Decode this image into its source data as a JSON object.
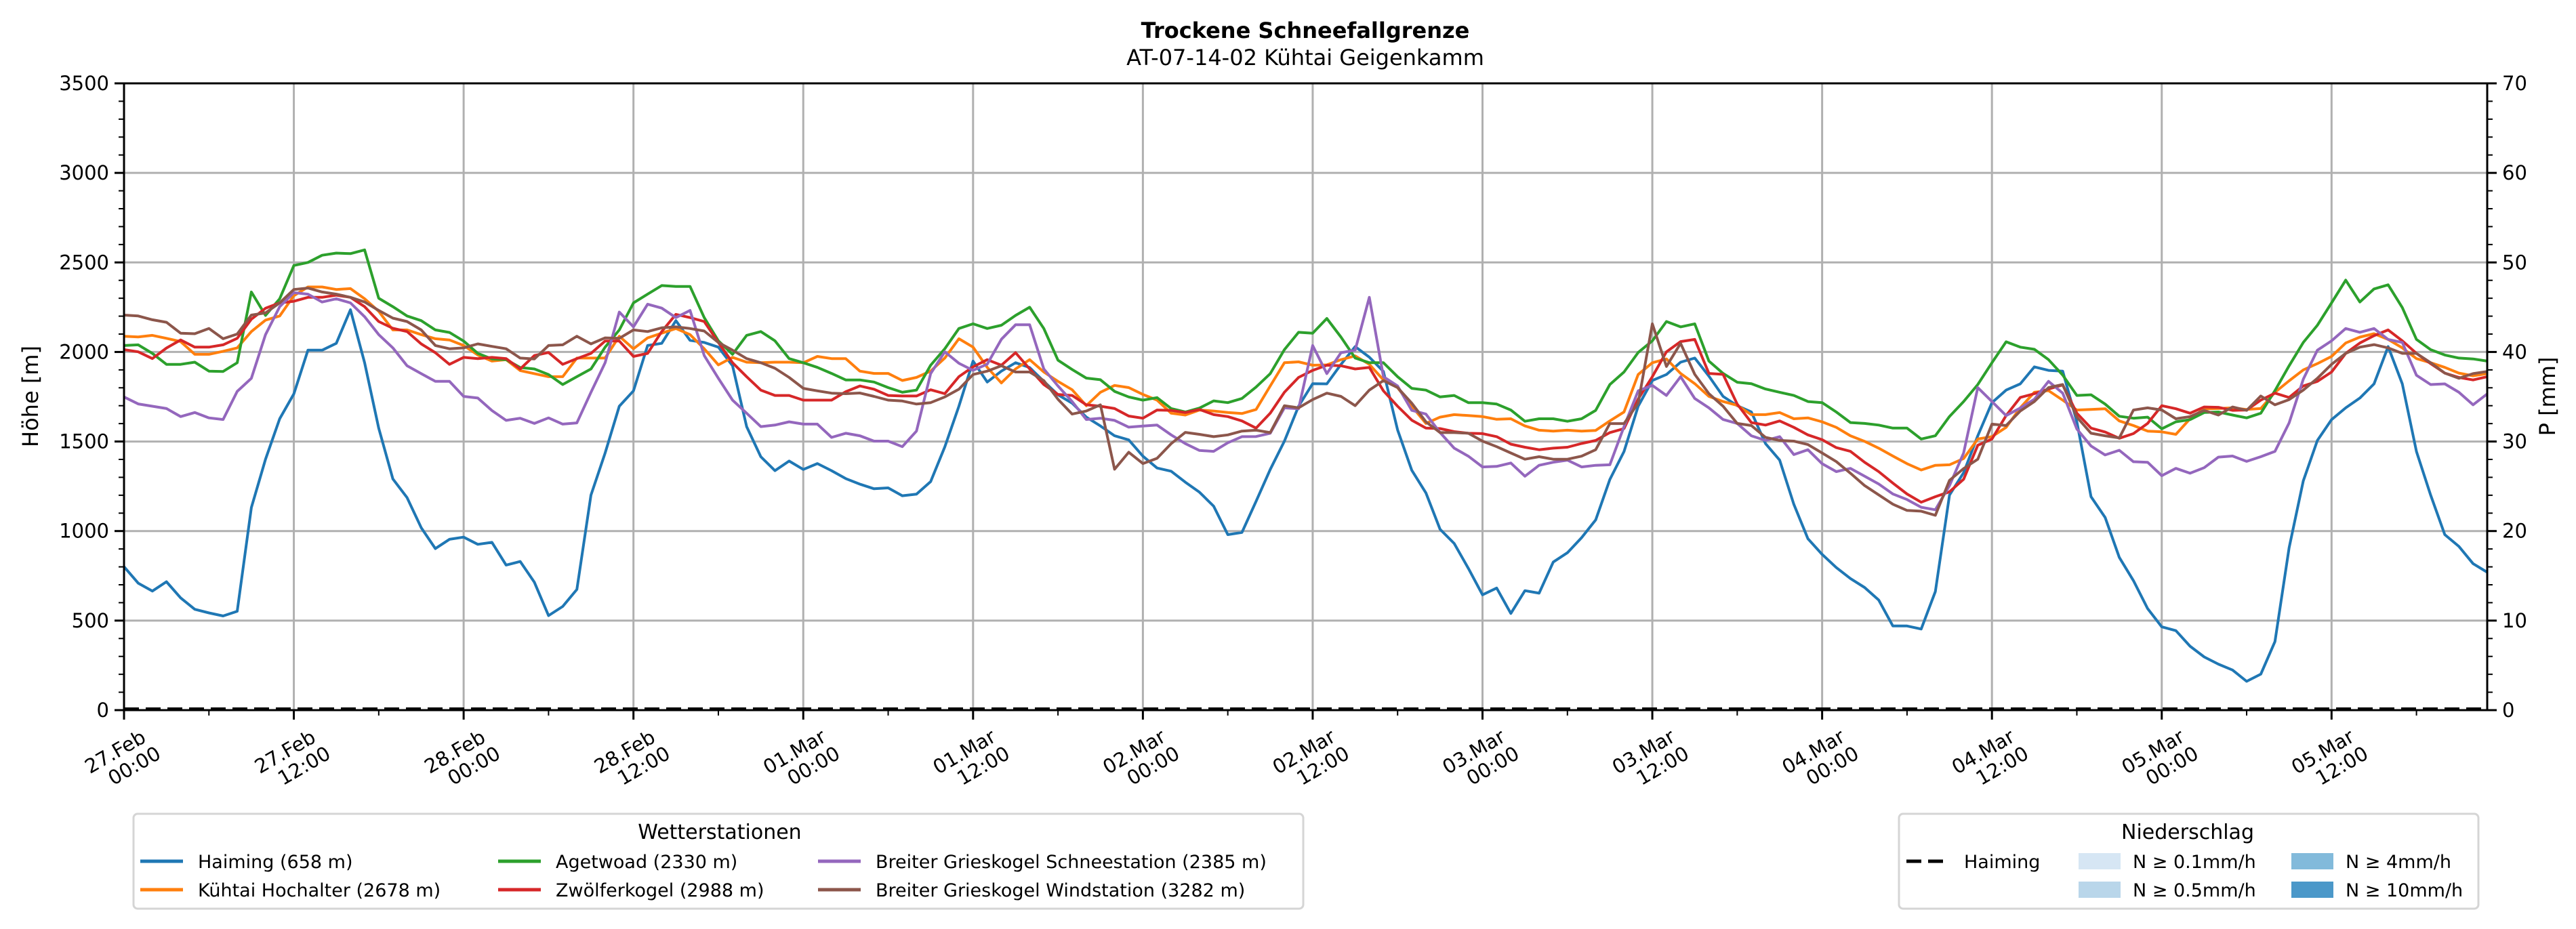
{
  "chart_data": {
    "type": "line",
    "title": "Trockene Schneefallgrenze",
    "subtitle": "AT-07-14-02 Kühtai Geigenkamm",
    "ylabel": "Höhe [m]",
    "ylabel_right": "P [mm]",
    "xlabel": "",
    "ylim": [
      0,
      3500
    ],
    "ylim_right": [
      0,
      70
    ],
    "y_ticks": [
      "0",
      "500",
      "1000",
      "1500",
      "2000",
      "2500",
      "3000",
      "3500"
    ],
    "y_ticks_right": [
      "0",
      "10",
      "20",
      "30",
      "40",
      "50",
      "60",
      "70"
    ],
    "x_unit": "hours since 27.Feb 00:00",
    "xlim": [
      0,
      167
    ],
    "x_ticks": [
      {
        "hour": 0,
        "line1": "27.Feb",
        "line2": "00:00"
      },
      {
        "hour": 12,
        "line1": "27.Feb",
        "line2": "12:00"
      },
      {
        "hour": 24,
        "line1": "28.Feb",
        "line2": "00:00"
      },
      {
        "hour": 36,
        "line1": "28.Feb",
        "line2": "12:00"
      },
      {
        "hour": 48,
        "line1": "01.Mar",
        "line2": "00:00"
      },
      {
        "hour": 60,
        "line1": "01.Mar",
        "line2": "12:00"
      },
      {
        "hour": 72,
        "line1": "02.Mar",
        "line2": "00:00"
      },
      {
        "hour": 84,
        "line1": "02.Mar",
        "line2": "12:00"
      },
      {
        "hour": 96,
        "line1": "03.Mar",
        "line2": "00:00"
      },
      {
        "hour": 108,
        "line1": "03.Mar",
        "line2": "12:00"
      },
      {
        "hour": 120,
        "line1": "04.Mar",
        "line2": "00:00"
      },
      {
        "hour": 132,
        "line1": "04.Mar",
        "line2": "12:00"
      },
      {
        "hour": 144,
        "line1": "05.Mar",
        "line2": "00:00"
      },
      {
        "hour": 156,
        "line1": "05.Mar",
        "line2": "12:00"
      }
    ],
    "grid": true,
    "legend_stations": {
      "title": "Wetterstationen",
      "placement": "bottom-left"
    },
    "legend_precip": {
      "title": "Niederschlag",
      "placement": "bottom-right",
      "items": [
        {
          "label": "Haiming",
          "kind": "dashed-line",
          "color": "#000000"
        },
        {
          "label": "N ≥ 0.1mm/h",
          "kind": "patch",
          "color": "#d6e6f4"
        },
        {
          "label": "N ≥ 0.5mm/h",
          "kind": "patch",
          "color": "#b9d6ea"
        },
        {
          "label": "N ≥ 4mm/h",
          "kind": "patch",
          "color": "#82badb"
        },
        {
          "label": "N ≥ 10mm/h",
          "kind": "patch",
          "color": "#4b98c9"
        }
      ]
    },
    "precipitation": {
      "name": "Haiming",
      "axis": "right",
      "style": "dashed",
      "color": "#000000",
      "values_constant": 0
    },
    "series": [
      {
        "name": "Haiming (658 m)",
        "color": "#1f77b4",
        "values": [
          801,
          709,
          665,
          717,
          627,
          563,
          543,
          526,
          552,
          1131,
          1401,
          1627,
          1766,
          2010,
          2010,
          2048,
          2236,
          1940,
          1575,
          1291,
          1187,
          1019,
          902,
          954,
          966,
          926,
          937,
          810,
          830,
          714,
          528,
          579,
          674,
          1201,
          1436,
          1697,
          1783,
          2036,
          2048,
          2175,
          2065,
          2053,
          2027,
          1923,
          1583,
          1415,
          1337,
          1391,
          1344,
          1377,
          1337,
          1293,
          1262,
          1236,
          1241,
          1197,
          1206,
          1276,
          1470,
          1697,
          1949,
          1832,
          1893,
          1940,
          1913,
          1836,
          1761,
          1714,
          1636,
          1587,
          1532,
          1509,
          1418,
          1352,
          1334,
          1273,
          1217,
          1139,
          980,
          992,
          1166,
          1344,
          1502,
          1697,
          1823,
          1822,
          1931,
          2030,
          1971,
          1891,
          1565,
          1340,
          1213,
          1010,
          931,
          792,
          644,
          682,
          540,
          667,
          653,
          827,
          879,
          963,
          1062,
          1288,
          1444,
          1697,
          1841,
          1874,
          1943,
          1966,
          1865,
          1752,
          1700,
          1665,
          1488,
          1396,
          1149,
          957,
          870,
          796,
          735,
          685,
          615,
          470,
          470,
          453,
          662,
          1201,
          1326,
          1532,
          1717,
          1787,
          1822,
          1917,
          1897,
          1893,
          1610,
          1192,
          1076,
          853,
          723,
          567,
          465,
          444,
          357,
          297,
          257,
          224,
          161,
          201,
          383,
          907,
          1280,
          1506,
          1622,
          1688,
          1743,
          1822,
          2030,
          1822,
          1444,
          1201,
          980,
          914,
          818,
          770
        ]
      },
      {
        "name": "Kühtai Hochalter (2678 m)",
        "color": "#ff7f0e",
        "values": [
          2088,
          2084,
          2093,
          2076,
          2058,
          1987,
          1987,
          2004,
          2023,
          2114,
          2178,
          2201,
          2314,
          2363,
          2363,
          2349,
          2354,
          2297,
          2227,
          2123,
          2123,
          2097,
          2074,
          2067,
          2036,
          1983,
          1949,
          1957,
          1896,
          1879,
          1862,
          1862,
          1966,
          1966,
          1966,
          2088,
          2018,
          2079,
          2105,
          2131,
          2097,
          2018,
          1928,
          1970,
          1943,
          1940,
          1943,
          1943,
          1940,
          1975,
          1963,
          1963,
          1893,
          1880,
          1880,
          1841,
          1858,
          1893,
          1966,
          2074,
          2027,
          1914,
          1827,
          1905,
          1957,
          1888,
          1836,
          1789,
          1700,
          1775,
          1813,
          1801,
          1763,
          1731,
          1658,
          1648,
          1676,
          1670,
          1662,
          1656,
          1679,
          1810,
          1940,
          1945,
          1926,
          1928,
          1957,
          1978,
          1931,
          1844,
          1801,
          1697,
          1601,
          1636,
          1650,
          1645,
          1639,
          1624,
          1627,
          1587,
          1563,
          1558,
          1563,
          1558,
          1562,
          1615,
          1665,
          1874,
          1940,
          1961,
          1880,
          1823,
          1752,
          1723,
          1702,
          1650,
          1650,
          1662,
          1627,
          1632,
          1610,
          1579,
          1532,
          1501,
          1463,
          1419,
          1376,
          1341,
          1367,
          1370,
          1405,
          1514,
          1527,
          1579,
          1688,
          1775,
          1784,
          1731,
          1676,
          1679,
          1683,
          1615,
          1589,
          1558,
          1554,
          1540,
          1627,
          1683,
          1684,
          1688,
          1679,
          1684,
          1775,
          1839,
          1900,
          1935,
          1975,
          2050,
          2083,
          2102,
          2070,
          2023,
          1963,
          1940,
          1914,
          1882,
          1867,
          1879
        ]
      },
      {
        "name": "Agetwoad (2330 m)",
        "color": "#2ca02c",
        "values": [
          2036,
          2040,
          1992,
          1931,
          1931,
          1943,
          1893,
          1891,
          1940,
          2335,
          2204,
          2297,
          2483,
          2500,
          2540,
          2552,
          2549,
          2570,
          2300,
          2253,
          2201,
          2175,
          2123,
          2109,
          2061,
          1992,
          1961,
          1957,
          1913,
          1905,
          1874,
          1818,
          1862,
          1905,
          2027,
          2123,
          2274,
          2323,
          2371,
          2366,
          2366,
          2192,
          2062,
          1987,
          2093,
          2114,
          2062,
          1963,
          1940,
          1914,
          1880,
          1844,
          1844,
          1832,
          1801,
          1775,
          1787,
          1926,
          2018,
          2131,
          2157,
          2131,
          2149,
          2204,
          2250,
          2131,
          1954,
          1902,
          1854,
          1845,
          1780,
          1749,
          1731,
          1745,
          1684,
          1665,
          1687,
          1727,
          1717,
          1740,
          1804,
          1879,
          2013,
          2110,
          2105,
          2187,
          2083,
          1966,
          1940,
          1940,
          1862,
          1797,
          1787,
          1749,
          1757,
          1717,
          1717,
          1709,
          1676,
          1613,
          1627,
          1627,
          1613,
          1627,
          1674,
          1818,
          1888,
          1997,
          2062,
          2170,
          2140,
          2157,
          1949,
          1880,
          1831,
          1823,
          1793,
          1775,
          1757,
          1723,
          1717,
          1665,
          1606,
          1601,
          1592,
          1575,
          1575,
          1514,
          1532,
          1640,
          1723,
          1818,
          1940,
          2057,
          2027,
          2015,
          1957,
          1871,
          1757,
          1761,
          1709,
          1641,
          1630,
          1636,
          1571,
          1610,
          1622,
          1662,
          1665,
          1648,
          1632,
          1658,
          1784,
          1923,
          2053,
          2149,
          2274,
          2401,
          2279,
          2352,
          2375,
          2248,
          2070,
          2013,
          1983,
          1966,
          1961,
          1949
        ]
      },
      {
        "name": "Zwölferkogel (2988 m)",
        "color": "#d62728",
        "values": [
          2013,
          2001,
          1963,
          2022,
          2067,
          2027,
          2027,
          2040,
          2076,
          2183,
          2244,
          2274,
          2283,
          2305,
          2305,
          2317,
          2305,
          2253,
          2170,
          2132,
          2114,
          2045,
          1996,
          1931,
          1970,
          1963,
          1970,
          1963,
          1905,
          1980,
          1997,
          1931,
          1963,
          1992,
          2061,
          2061,
          1975,
          1992,
          2114,
          2210,
          2192,
          2170,
          2053,
          1940,
          1862,
          1787,
          1757,
          1757,
          1731,
          1731,
          1731,
          1778,
          1810,
          1792,
          1757,
          1754,
          1754,
          1789,
          1767,
          1862,
          1917,
          1957,
          1926,
          1996,
          1905,
          1818,
          1763,
          1757,
          1705,
          1697,
          1684,
          1642,
          1630,
          1676,
          1674,
          1662,
          1679,
          1650,
          1639,
          1615,
          1575,
          1658,
          1775,
          1858,
          1897,
          1926,
          1923,
          1905,
          1914,
          1783,
          1697,
          1619,
          1575,
          1572,
          1555,
          1546,
          1544,
          1527,
          1485,
          1468,
          1454,
          1463,
          1468,
          1489,
          1506,
          1550,
          1572,
          1737,
          1862,
          2001,
          2058,
          2070,
          1880,
          1875,
          1709,
          1606,
          1592,
          1615,
          1579,
          1537,
          1510,
          1466,
          1445,
          1384,
          1332,
          1268,
          1207,
          1161,
          1192,
          1219,
          1289,
          1479,
          1514,
          1645,
          1746,
          1767,
          1793,
          1816,
          1658,
          1575,
          1553,
          1518,
          1544,
          1601,
          1700,
          1683,
          1658,
          1693,
          1691,
          1674,
          1676,
          1731,
          1770,
          1746,
          1810,
          1836,
          1888,
          1992,
          2050,
          2091,
          2123,
          2062,
          1992,
          1935,
          1882,
          1858,
          1844,
          1862
        ]
      },
      {
        "name": "Breiter Grieskogel Schneestation (2385 m)",
        "color": "#9467bd",
        "values": [
          1749,
          1710,
          1697,
          1684,
          1639,
          1662,
          1632,
          1623,
          1780,
          1853,
          2097,
          2253,
          2331,
          2323,
          2279,
          2297,
          2274,
          2197,
          2097,
          2023,
          1923,
          1879,
          1836,
          1836,
          1752,
          1743,
          1673,
          1618,
          1630,
          1601,
          1632,
          1597,
          1604,
          1775,
          1940,
          2223,
          2140,
          2267,
          2245,
          2192,
          2232,
          1980,
          1853,
          1731,
          1658,
          1583,
          1592,
          1610,
          1597,
          1597,
          1523,
          1546,
          1532,
          1502,
          1502,
          1471,
          1558,
          1879,
          2001,
          1937,
          1897,
          1932,
          2071,
          2152,
          2152,
          1905,
          1810,
          1723,
          1623,
          1630,
          1618,
          1580,
          1586,
          1592,
          1537,
          1488,
          1450,
          1445,
          1493,
          1527,
          1528,
          1546,
          1688,
          1683,
          2036,
          1879,
          1996,
          2010,
          2305,
          1862,
          1810,
          1674,
          1653,
          1550,
          1463,
          1418,
          1358,
          1361,
          1380,
          1306,
          1367,
          1384,
          1396,
          1358,
          1367,
          1370,
          1583,
          1783,
          1813,
          1757,
          1862,
          1740,
          1688,
          1623,
          1601,
          1532,
          1506,
          1527,
          1427,
          1454,
          1376,
          1332,
          1350,
          1306,
          1263,
          1207,
          1176,
          1133,
          1119,
          1254,
          1436,
          1801,
          1723,
          1645,
          1687,
          1736,
          1836,
          1770,
          1570,
          1475,
          1425,
          1451,
          1387,
          1384,
          1309,
          1350,
          1323,
          1354,
          1413,
          1419,
          1389,
          1415,
          1445,
          1604,
          1848,
          2010,
          2062,
          2131,
          2110,
          2131,
          2070,
          2053,
          1870,
          1818,
          1822,
          1775,
          1705,
          1766
        ]
      },
      {
        "name": "Breiter Grieskogel Windstation (3282 m)",
        "color": "#8c564b",
        "values": [
          2206,
          2201,
          2180,
          2166,
          2105,
          2102,
          2131,
          2074,
          2100,
          2206,
          2218,
          2274,
          2349,
          2357,
          2335,
          2323,
          2305,
          2279,
          2232,
          2189,
          2170,
          2123,
          2036,
          2018,
          2023,
          2045,
          2031,
          2018,
          1966,
          1961,
          2036,
          2040,
          2088,
          2045,
          2079,
          2076,
          2123,
          2114,
          2135,
          2140,
          2131,
          2117,
          2053,
          2010,
          1963,
          1940,
          1909,
          1858,
          1797,
          1783,
          1770,
          1767,
          1771,
          1752,
          1731,
          1726,
          1709,
          1717,
          1749,
          1792,
          1874,
          1893,
          1923,
          1888,
          1888,
          1840,
          1736,
          1653,
          1670,
          1705,
          1345,
          1440,
          1377,
          1406,
          1488,
          1551,
          1540,
          1527,
          1537,
          1558,
          1563,
          1550,
          1700,
          1688,
          1734,
          1770,
          1752,
          1700,
          1787,
          1840,
          1801,
          1714,
          1610,
          1550,
          1550,
          1546,
          1502,
          1471,
          1436,
          1401,
          1415,
          1401,
          1401,
          1418,
          1454,
          1600,
          1600,
          1714,
          2157,
          1919,
          2048,
          1875,
          1767,
          1697,
          1601,
          1589,
          1523,
          1506,
          1502,
          1483,
          1436,
          1388,
          1323,
          1254,
          1202,
          1150,
          1115,
          1111,
          1088,
          1283,
          1349,
          1401,
          1597,
          1589,
          1670,
          1723,
          1801,
          1818,
          1636,
          1546,
          1532,
          1520,
          1676,
          1688,
          1676,
          1627,
          1639,
          1674,
          1648,
          1693,
          1674,
          1754,
          1705,
          1734,
          1787,
          1853,
          1931,
          1992,
          2027,
          2041,
          2023,
          1992,
          1992,
          1940,
          1882,
          1853,
          1879,
          1891
        ]
      }
    ]
  }
}
